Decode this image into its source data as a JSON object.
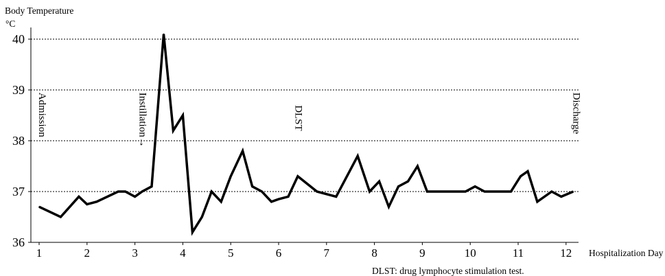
{
  "chart_data": {
    "type": "line",
    "ylabel": "Body Temperature",
    "yunit": "°C",
    "xlabel": "Hospitalization Day",
    "xlim": [
      1,
      12.25
    ],
    "ylim": [
      36,
      40
    ],
    "yticks": [
      36,
      37,
      38,
      39,
      40
    ],
    "xticks": [
      1,
      2,
      3,
      4,
      5,
      6,
      7,
      8,
      9,
      10,
      11,
      12
    ],
    "grid": "horizontal dotted",
    "series": [
      {
        "x": [
          1,
          1.45,
          1.83,
          2.0,
          2.2,
          2.65,
          2.8,
          3.0,
          3.15,
          3.35,
          3.6,
          3.8,
          4.0,
          4.2,
          4.4,
          4.6,
          4.8,
          5.0,
          5.25,
          5.45,
          5.65,
          5.85,
          6.0,
          6.2,
          6.4,
          6.8,
          7.2,
          7.65,
          7.9,
          8.1,
          8.3,
          8.5,
          8.7,
          8.9,
          9.1,
          9.5,
          9.9,
          10.1,
          10.3,
          10.55,
          10.85,
          11.05,
          11.2,
          11.4,
          11.7,
          11.9,
          12.15
        ],
        "y": [
          36.7,
          36.5,
          36.9,
          36.75,
          36.8,
          37.0,
          37.0,
          36.9,
          37.0,
          37.1,
          40.1,
          38.2,
          38.5,
          36.2,
          36.5,
          37.0,
          36.8,
          37.3,
          37.8,
          37.1,
          37.0,
          36.8,
          36.85,
          36.9,
          37.3,
          37.0,
          36.9,
          37.7,
          37.0,
          37.2,
          36.7,
          37.1,
          37.2,
          37.5,
          37.0,
          37.0,
          37.0,
          37.1,
          37.0,
          37.0,
          37.0,
          37.3,
          37.4,
          36.8,
          37.0,
          36.9,
          37.0
        ]
      }
    ],
    "annotations": [
      {
        "text": "Admission",
        "x": 1,
        "y": 38.95
      },
      {
        "text": "Instillation→",
        "x": 3.1,
        "y": 38.95
      },
      {
        "text": "DLST",
        "x": 6.35,
        "y": 38.7
      },
      {
        "text": "Discharge",
        "x": 12.15,
        "y": 38.95
      }
    ],
    "footnote": "DLST: drug lymphocyte stimulation test."
  }
}
